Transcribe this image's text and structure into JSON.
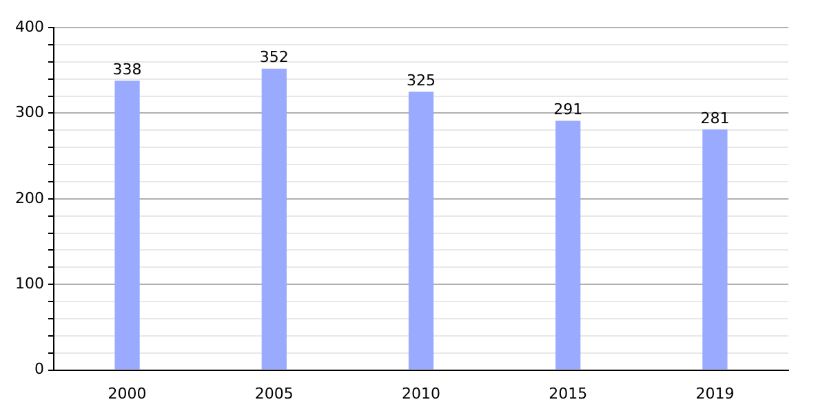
{
  "chart_data": {
    "type": "bar",
    "categories": [
      "2000",
      "2005",
      "2010",
      "2015",
      "2019"
    ],
    "values": [
      338,
      352,
      325,
      291,
      281
    ],
    "color": "#99aaff",
    "data_labels": true,
    "ylim": [
      0,
      400
    ],
    "yticks": [
      0,
      {
        "value": 20,
        "label": null
      },
      {
        "value": 40,
        "label": null
      },
      {
        "value": 60,
        "label": null
      },
      {
        "value": 80,
        "label": null
      },
      100,
      {
        "value": 120,
        "label": null
      },
      {
        "value": 140,
        "label": null
      },
      {
        "value": 160,
        "label": null
      },
      {
        "value": 180,
        "label": null
      },
      200,
      {
        "value": 220,
        "label": null
      },
      {
        "value": 240,
        "label": null
      },
      {
        "value": 260,
        "label": null
      },
      {
        "value": 280,
        "label": null
      },
      300,
      {
        "value": 320,
        "label": null
      },
      {
        "value": 340,
        "label": null
      },
      {
        "value": 360,
        "label": null
      },
      {
        "value": 380,
        "label": null
      },
      400
    ],
    "grid": "y",
    "legend": false
  }
}
